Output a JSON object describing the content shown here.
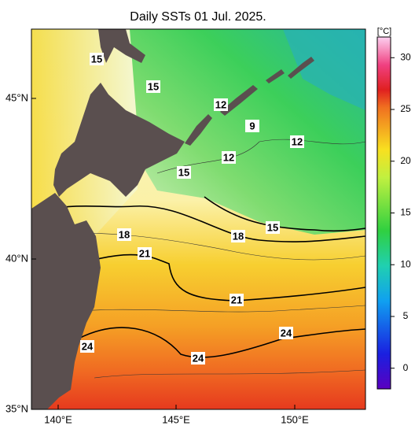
{
  "title": "Daily SSTs 01 Jul. 2025.",
  "x_axis_labels": [
    "140°E",
    "145°E",
    "150°E"
  ],
  "y_axis_labels": [
    "35°N",
    "40°N",
    "45°N"
  ],
  "contour_labels": [
    "15",
    "15",
    "12",
    "9",
    "12",
    "12",
    "15",
    "18",
    "18",
    "15",
    "21",
    "21",
    "24",
    "24",
    "24"
  ],
  "colorbar": {
    "unit": "[°C]",
    "range": [
      -2,
      32
    ],
    "ticks": [
      0,
      5,
      10,
      15,
      20,
      25,
      30
    ]
  }
}
